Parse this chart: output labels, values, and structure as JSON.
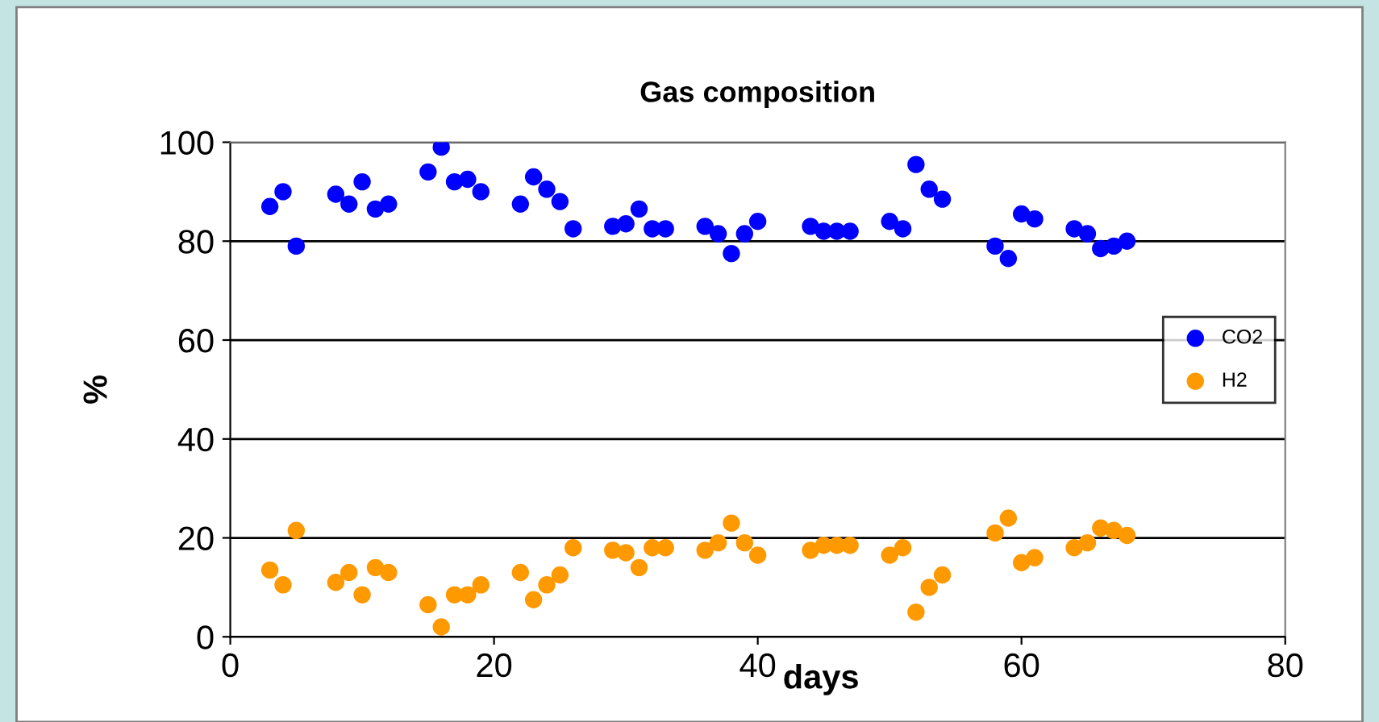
{
  "chart_data": {
    "type": "scatter",
    "title": "Gas composition",
    "xlabel": "days",
    "ylabel": "%",
    "xlim": [
      0,
      80
    ],
    "xticks": [
      0,
      20,
      40,
      60,
      80
    ],
    "ylim": [
      0,
      100
    ],
    "yticks": [
      0,
      20,
      40,
      60,
      80,
      100
    ],
    "grid": "y",
    "legend": "right",
    "marker": "circle",
    "x": [
      3,
      4,
      5,
      8,
      9,
      10,
      11,
      12,
      15,
      16,
      17,
      18,
      19,
      22,
      23,
      24,
      25,
      26,
      29,
      30,
      31,
      32,
      33,
      36,
      37,
      38,
      39,
      40,
      44,
      45,
      46,
      47,
      50,
      51,
      52,
      53,
      54,
      58,
      59,
      60,
      61,
      64,
      65,
      66,
      67,
      68
    ],
    "series": [
      {
        "name": "CO2",
        "color": "#0000ff",
        "values": [
          87,
          90,
          79,
          89.5,
          87.5,
          92,
          86.5,
          87.5,
          94,
          99,
          92,
          92.5,
          90,
          87.5,
          93,
          90.5,
          88,
          82.5,
          83,
          83.5,
          86.5,
          82.5,
          82.5,
          83,
          81.5,
          77.5,
          81.5,
          84,
          83,
          82,
          82,
          82,
          84,
          82.5,
          95.5,
          90.5,
          88.5,
          79,
          76.5,
          85.5,
          84.5,
          82.5,
          81.5,
          78.5,
          79,
          80
        ]
      },
      {
        "name": "H2",
        "color": "#ff9900",
        "values": [
          13.5,
          10.5,
          21.5,
          11,
          13,
          8.5,
          14,
          13,
          6.5,
          2,
          8.5,
          8.5,
          10.5,
          13,
          7.5,
          10.5,
          12.5,
          18,
          17.5,
          17,
          14,
          18,
          18,
          17.5,
          19,
          23,
          19,
          16.5,
          17.5,
          18.5,
          18.5,
          18.5,
          16.5,
          18,
          5,
          10,
          12.5,
          21,
          24,
          15,
          16,
          18,
          19,
          22,
          21.5,
          20.5
        ]
      }
    ]
  }
}
